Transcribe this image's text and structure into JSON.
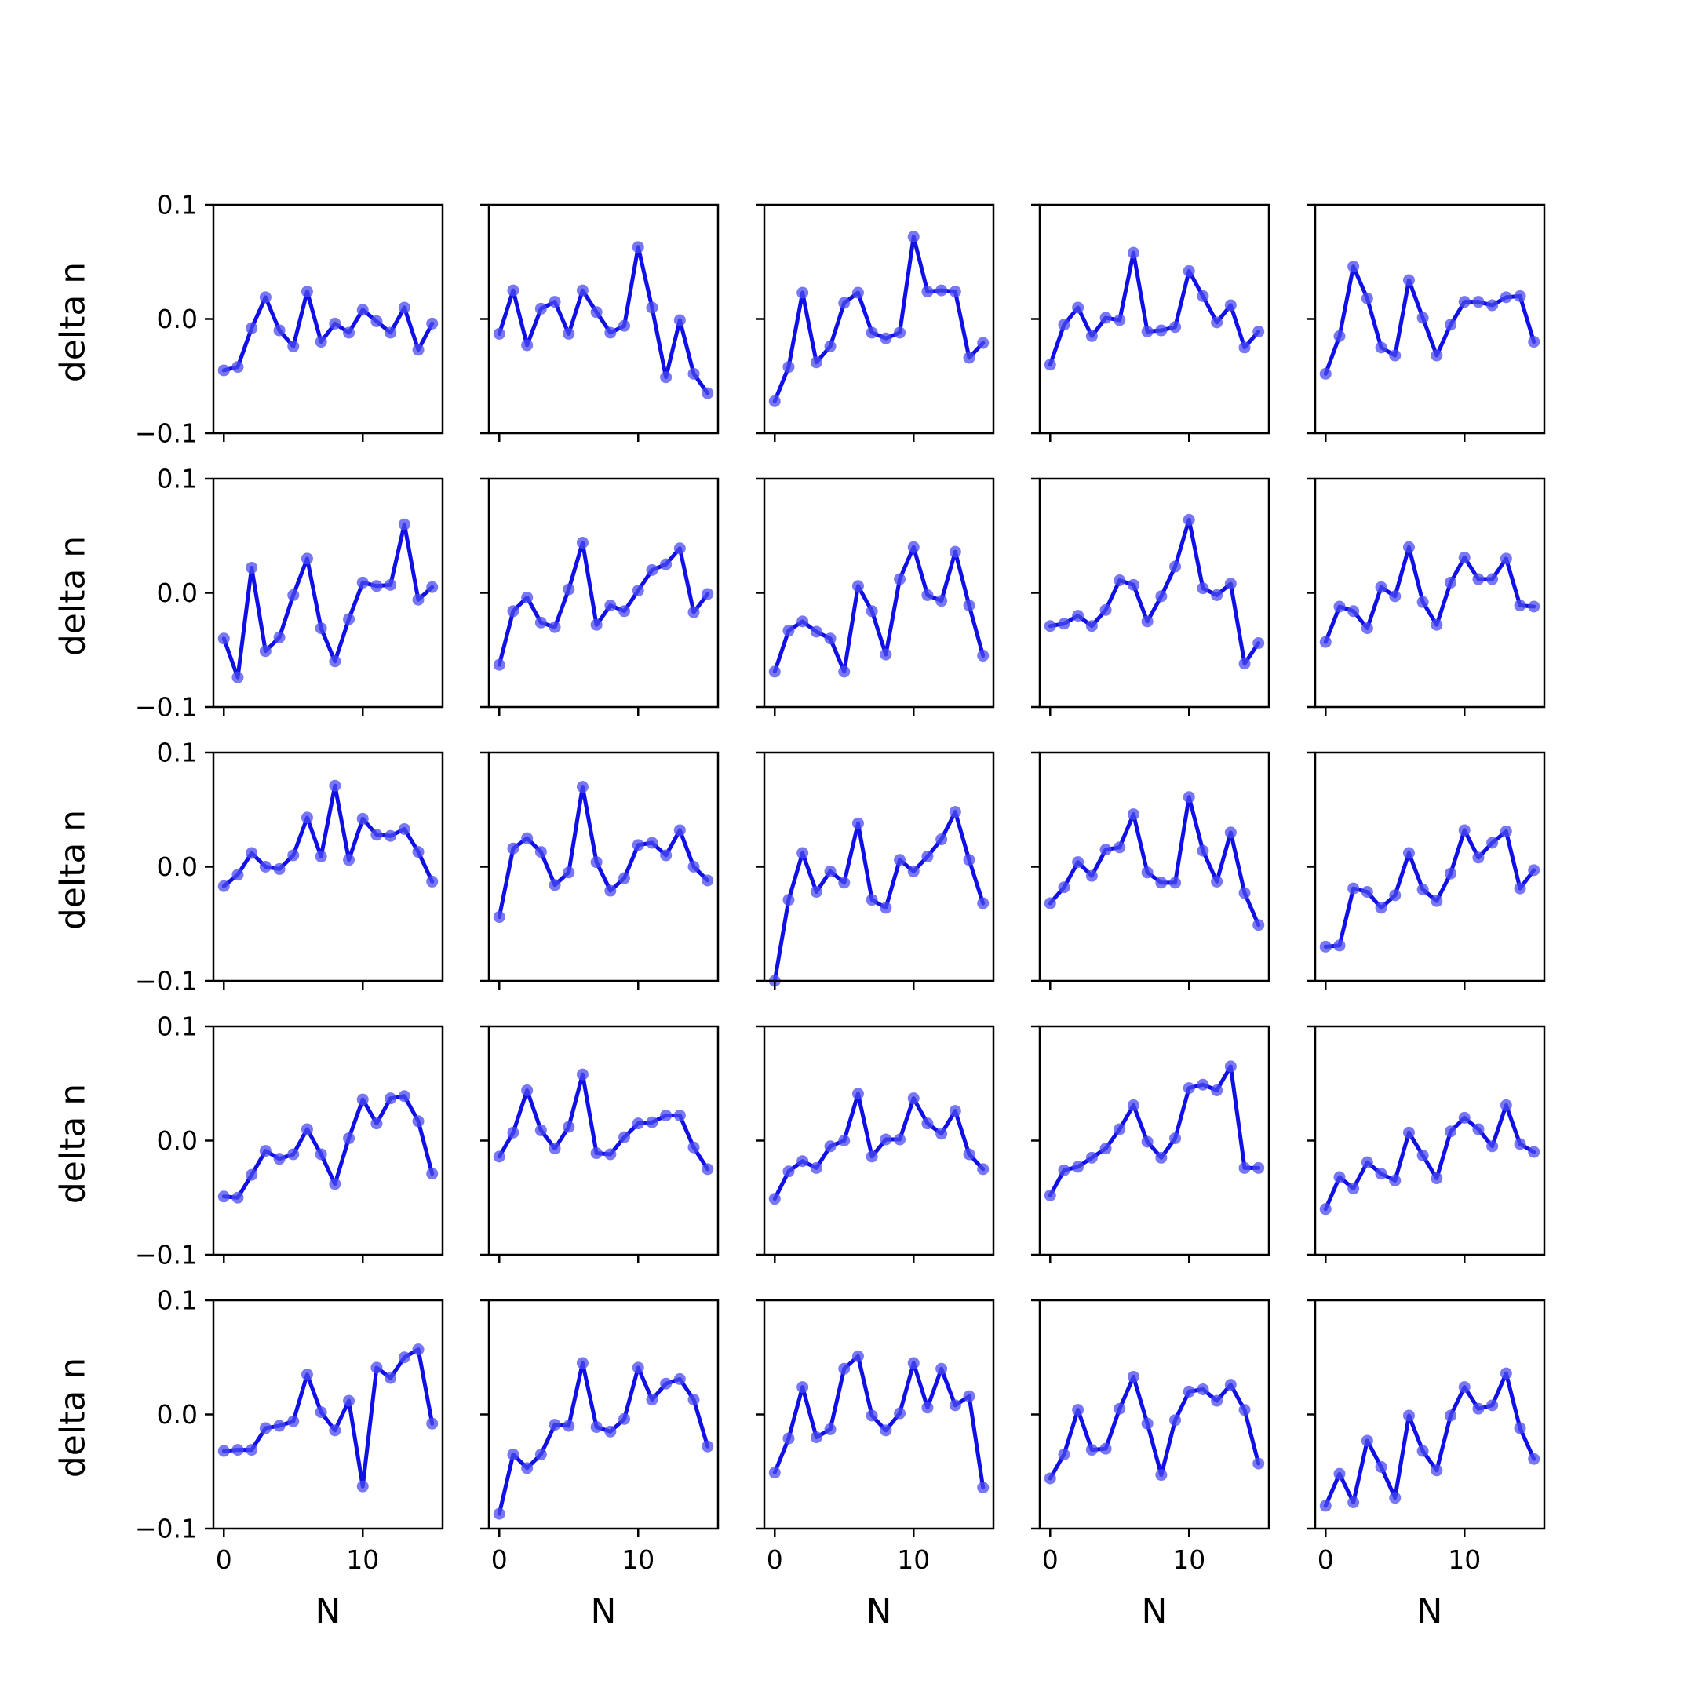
{
  "figure": {
    "line_color": "#0f0fe6",
    "marker_color": "#4b4bf0",
    "axes_color": "#000000"
  },
  "chart_data": {
    "type": "line",
    "layout": "5x5 grid of small multiples",
    "shared_x_axis": true,
    "shared_y_axis": true,
    "xlabel": "N",
    "ylabel": "delta n",
    "xlim": [
      -0.75,
      15.75
    ],
    "ylim": [
      -0.1,
      0.1
    ],
    "xticks": [
      0,
      10
    ],
    "xtick_labels": [
      "0",
      "10"
    ],
    "yticks": [
      -0.1,
      0.0,
      0.1
    ],
    "ytick_labels": [
      "−0.1",
      "0.0",
      "0.1"
    ],
    "grid": false,
    "x": [
      0,
      1,
      2,
      3,
      4,
      5,
      6,
      7,
      8,
      9,
      10,
      11,
      12,
      13,
      14,
      15
    ],
    "panels": [
      {
        "row": 0,
        "col": 0,
        "y": [
          -0.045,
          -0.042,
          -0.008,
          0.019,
          -0.01,
          -0.024,
          0.024,
          -0.02,
          -0.004,
          -0.012,
          0.008,
          -0.002,
          -0.012,
          0.01,
          -0.027,
          -0.004
        ]
      },
      {
        "row": 0,
        "col": 1,
        "y": [
          -0.013,
          0.025,
          -0.023,
          0.009,
          0.015,
          -0.013,
          0.025,
          0.006,
          -0.012,
          -0.006,
          0.063,
          0.01,
          -0.051,
          -0.001,
          -0.048,
          -0.065
        ]
      },
      {
        "row": 0,
        "col": 2,
        "y": [
          -0.072,
          -0.042,
          0.023,
          -0.038,
          -0.024,
          0.014,
          0.023,
          -0.012,
          -0.017,
          -0.012,
          0.072,
          0.024,
          0.025,
          0.024,
          -0.034,
          -0.021
        ]
      },
      {
        "row": 0,
        "col": 3,
        "y": [
          -0.04,
          -0.005,
          0.01,
          -0.015,
          0.001,
          -0.001,
          0.058,
          -0.011,
          -0.01,
          -0.007,
          0.042,
          0.02,
          -0.003,
          0.012,
          -0.025,
          -0.011
        ]
      },
      {
        "row": 0,
        "col": 4,
        "y": [
          -0.048,
          -0.015,
          0.046,
          0.018,
          -0.025,
          -0.032,
          0.034,
          0.001,
          -0.032,
          -0.005,
          0.015,
          0.015,
          0.012,
          0.019,
          0.02,
          -0.02
        ]
      },
      {
        "row": 1,
        "col": 0,
        "y": [
          -0.04,
          -0.074,
          0.022,
          -0.051,
          -0.039,
          -0.002,
          0.03,
          -0.031,
          -0.06,
          -0.023,
          0.009,
          0.006,
          0.007,
          0.06,
          -0.006,
          0.005
        ]
      },
      {
        "row": 1,
        "col": 1,
        "y": [
          -0.063,
          -0.016,
          -0.004,
          -0.026,
          -0.03,
          0.003,
          0.044,
          -0.028,
          -0.011,
          -0.016,
          0.002,
          0.02,
          0.025,
          0.039,
          -0.017,
          -0.001
        ]
      },
      {
        "row": 1,
        "col": 2,
        "y": [
          -0.069,
          -0.033,
          -0.025,
          -0.034,
          -0.04,
          -0.069,
          0.006,
          -0.016,
          -0.054,
          0.012,
          0.04,
          -0.002,
          -0.007,
          0.036,
          -0.011,
          -0.055
        ]
      },
      {
        "row": 1,
        "col": 3,
        "y": [
          -0.029,
          -0.027,
          -0.02,
          -0.029,
          -0.015,
          0.011,
          0.007,
          -0.025,
          -0.003,
          0.023,
          0.064,
          0.004,
          -0.002,
          0.008,
          -0.062,
          -0.044
        ]
      },
      {
        "row": 1,
        "col": 4,
        "y": [
          -0.043,
          -0.012,
          -0.016,
          -0.031,
          0.005,
          -0.003,
          0.04,
          -0.008,
          -0.028,
          0.009,
          0.031,
          0.012,
          0.012,
          0.03,
          -0.011,
          -0.012
        ]
      },
      {
        "row": 2,
        "col": 0,
        "y": [
          -0.017,
          -0.007,
          0.012,
          0.0,
          -0.002,
          0.01,
          0.043,
          0.009,
          0.071,
          0.006,
          0.042,
          0.028,
          0.027,
          0.033,
          0.013,
          -0.013
        ]
      },
      {
        "row": 2,
        "col": 1,
        "y": [
          -0.044,
          0.016,
          0.025,
          0.013,
          -0.016,
          -0.005,
          0.07,
          0.004,
          -0.021,
          -0.01,
          0.019,
          0.021,
          0.01,
          0.032,
          0.0,
          -0.012
        ]
      },
      {
        "row": 2,
        "col": 2,
        "y": [
          -0.1,
          -0.029,
          0.012,
          -0.022,
          -0.004,
          -0.014,
          0.038,
          -0.029,
          -0.036,
          0.006,
          -0.004,
          0.009,
          0.024,
          0.048,
          0.006,
          -0.032
        ]
      },
      {
        "row": 2,
        "col": 3,
        "y": [
          -0.032,
          -0.018,
          0.004,
          -0.008,
          0.015,
          0.017,
          0.046,
          -0.005,
          -0.014,
          -0.014,
          0.061,
          0.014,
          -0.013,
          0.03,
          -0.023,
          -0.051
        ]
      },
      {
        "row": 2,
        "col": 4,
        "y": [
          -0.07,
          -0.069,
          -0.019,
          -0.022,
          -0.036,
          -0.025,
          0.012,
          -0.02,
          -0.03,
          -0.006,
          0.032,
          0.008,
          0.021,
          0.031,
          -0.019,
          -0.003
        ]
      },
      {
        "row": 3,
        "col": 0,
        "y": [
          -0.049,
          -0.05,
          -0.03,
          -0.009,
          -0.016,
          -0.012,
          0.01,
          -0.012,
          -0.038,
          0.002,
          0.036,
          0.015,
          0.037,
          0.039,
          0.017,
          -0.029
        ]
      },
      {
        "row": 3,
        "col": 1,
        "y": [
          -0.014,
          0.007,
          0.044,
          0.009,
          -0.007,
          0.012,
          0.058,
          -0.011,
          -0.012,
          0.003,
          0.015,
          0.016,
          0.022,
          0.022,
          -0.006,
          -0.025
        ]
      },
      {
        "row": 3,
        "col": 2,
        "y": [
          -0.051,
          -0.027,
          -0.018,
          -0.024,
          -0.005,
          0.0,
          0.041,
          -0.014,
          0.001,
          0.001,
          0.037,
          0.015,
          0.006,
          0.026,
          -0.012,
          -0.025
        ]
      },
      {
        "row": 3,
        "col": 3,
        "y": [
          -0.048,
          -0.026,
          -0.023,
          -0.015,
          -0.007,
          0.01,
          0.031,
          -0.001,
          -0.015,
          0.002,
          0.046,
          0.049,
          0.044,
          0.065,
          -0.024,
          -0.024
        ]
      },
      {
        "row": 3,
        "col": 4,
        "y": [
          -0.06,
          -0.032,
          -0.042,
          -0.019,
          -0.029,
          -0.035,
          0.007,
          -0.013,
          -0.033,
          0.008,
          0.02,
          0.01,
          -0.005,
          0.031,
          -0.003,
          -0.01
        ]
      },
      {
        "row": 4,
        "col": 0,
        "y": [
          -0.032,
          -0.031,
          -0.031,
          -0.012,
          -0.01,
          -0.006,
          0.035,
          0.002,
          -0.014,
          0.012,
          -0.063,
          0.041,
          0.032,
          0.05,
          0.057,
          -0.008
        ]
      },
      {
        "row": 4,
        "col": 1,
        "y": [
          -0.087,
          -0.035,
          -0.047,
          -0.035,
          -0.009,
          -0.01,
          0.045,
          -0.011,
          -0.015,
          -0.004,
          0.041,
          0.013,
          0.027,
          0.031,
          0.013,
          -0.028
        ]
      },
      {
        "row": 4,
        "col": 2,
        "y": [
          -0.051,
          -0.021,
          0.024,
          -0.02,
          -0.013,
          0.04,
          0.051,
          -0.001,
          -0.014,
          0.001,
          0.045,
          0.006,
          0.04,
          0.008,
          0.016,
          -0.064
        ]
      },
      {
        "row": 4,
        "col": 3,
        "y": [
          -0.056,
          -0.035,
          0.004,
          -0.031,
          -0.03,
          0.005,
          0.033,
          -0.008,
          -0.053,
          -0.005,
          0.02,
          0.022,
          0.012,
          0.026,
          0.004,
          -0.043
        ]
      },
      {
        "row": 4,
        "col": 4,
        "y": [
          -0.08,
          -0.052,
          -0.077,
          -0.023,
          -0.046,
          -0.073,
          -0.001,
          -0.032,
          -0.049,
          -0.001,
          0.024,
          0.005,
          0.008,
          0.036,
          -0.012,
          -0.039
        ]
      }
    ]
  }
}
